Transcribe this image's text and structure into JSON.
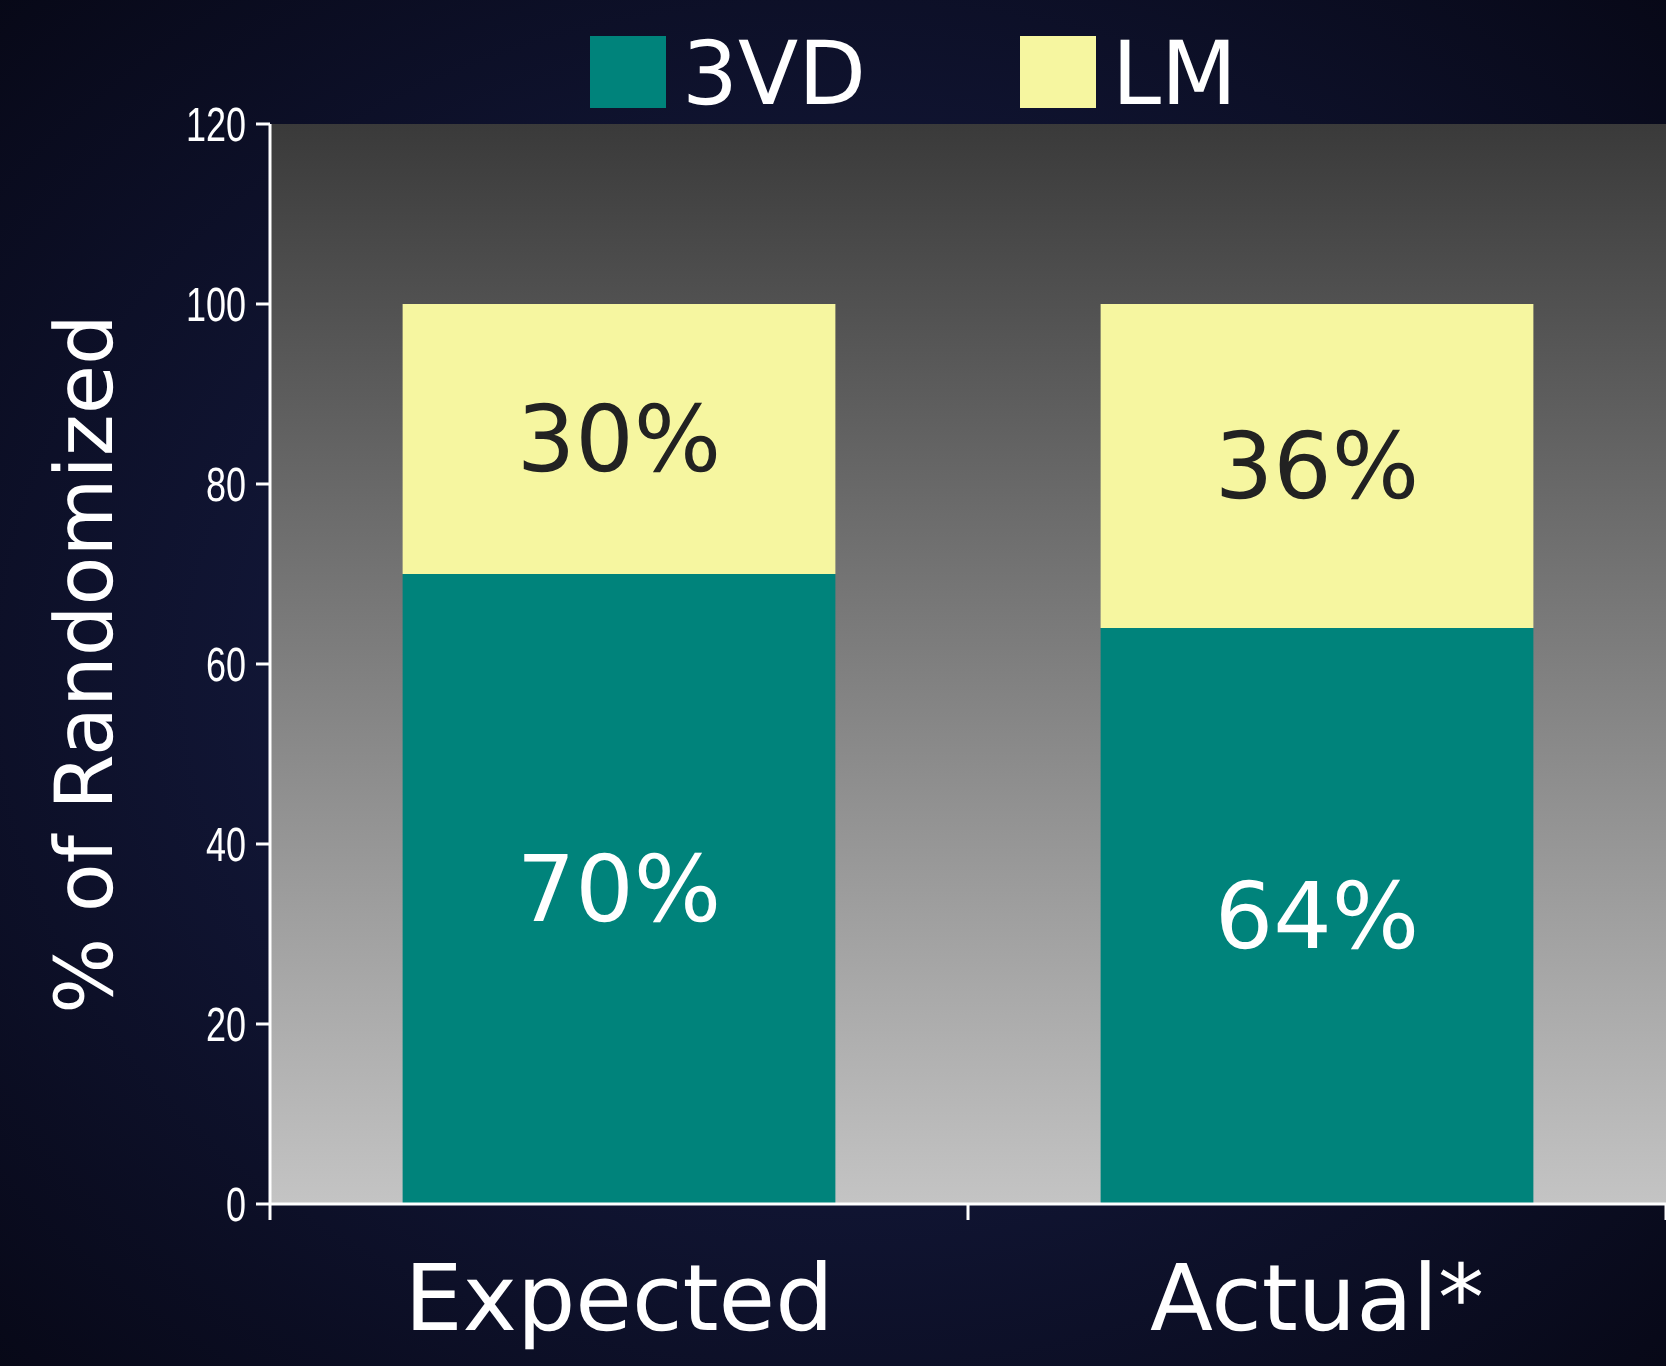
{
  "chart_data": {
    "type": "bar",
    "stacked": true,
    "ylabel": "% of Randomized",
    "categories": [
      "Expected",
      "Actual*"
    ],
    "series": [
      {
        "name": "3VD",
        "color": "#00837b",
        "values": [
          70,
          64
        ],
        "value_labels": [
          "70%",
          "64%"
        ]
      },
      {
        "name": "LM",
        "color": "#f6f6a0",
        "values": [
          30,
          36
        ],
        "value_labels": [
          "30%",
          "36%"
        ]
      }
    ],
    "ylim": [
      0,
      120
    ],
    "yticks": [
      0,
      20,
      40,
      60,
      80,
      100,
      120
    ],
    "legend": "top",
    "grid": false
  }
}
